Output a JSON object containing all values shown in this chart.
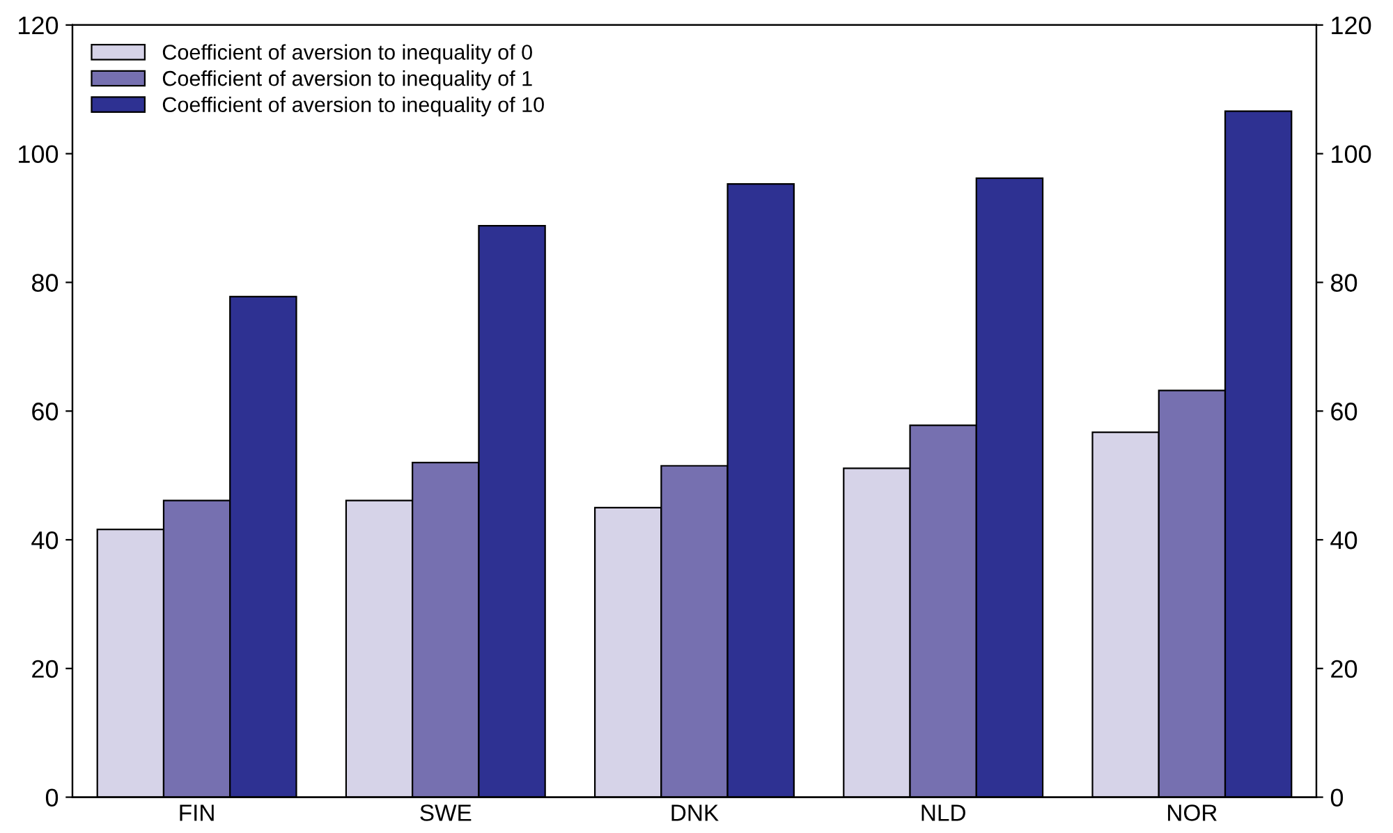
{
  "chart_data": {
    "type": "bar",
    "categories": [
      "FIN",
      "SWE",
      "DNK",
      "NLD",
      "NOR"
    ],
    "series": [
      {
        "name": "Coefficient of aversion to inequality of 0",
        "color": "#d6d3e8",
        "values": [
          41.6,
          46.1,
          45.0,
          51.1,
          56.7
        ]
      },
      {
        "name": "Coefficient of aversion to inequality of 1",
        "color": "#7670b0",
        "values": [
          46.1,
          52.0,
          51.5,
          57.8,
          63.2
        ]
      },
      {
        "name": "Coefficient of aversion to inequality of 10",
        "color": "#2e3192",
        "values": [
          77.8,
          88.8,
          95.3,
          96.2,
          106.6
        ]
      }
    ],
    "ylim": [
      0,
      120
    ],
    "yticks": [
      0,
      20,
      40,
      60,
      80,
      100,
      120
    ],
    "y2lim": [
      0,
      120
    ],
    "y2ticks": [
      0,
      20,
      40,
      60,
      80,
      100,
      120
    ],
    "grid": false,
    "legend": "top left"
  }
}
